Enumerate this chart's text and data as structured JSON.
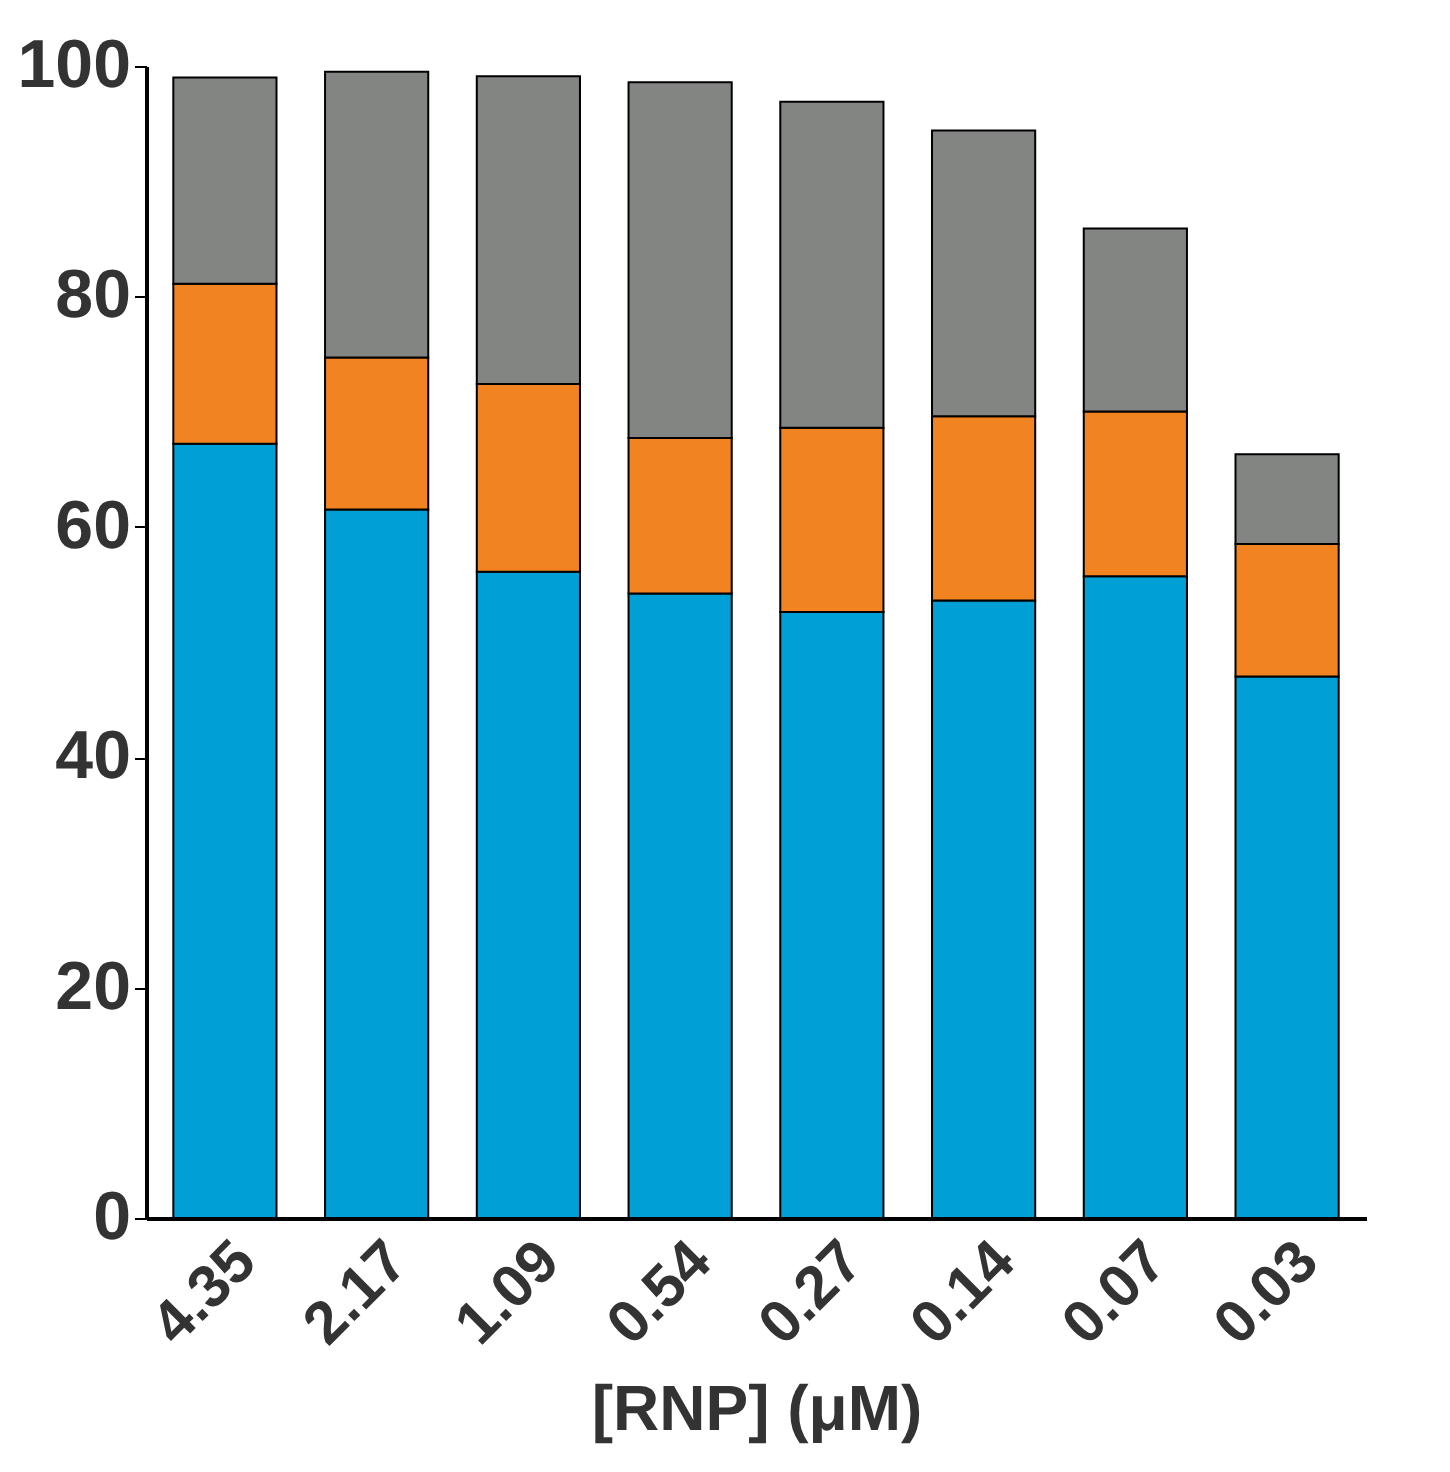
{
  "chart_data": {
    "type": "bar",
    "stacked": true,
    "xlabel": "[RNP] (μM)",
    "categories": [
      "4.35",
      "2.17",
      "1.09",
      "0.54",
      "0.27",
      "0.14",
      "0.07",
      "0.03"
    ],
    "series": [
      {
        "color": "#00a0d6",
        "values": [
          67.2,
          61.5,
          56.1,
          54.2,
          52.6,
          53.6,
          55.7,
          47.0
        ]
      },
      {
        "color": "#f28321",
        "values": [
          13.9,
          13.2,
          16.3,
          13.5,
          16.0,
          16.0,
          14.3,
          11.5
        ]
      },
      {
        "color": "#838583",
        "values": [
          17.9,
          24.8,
          26.7,
          30.9,
          28.3,
          24.8,
          15.9,
          7.8
        ]
      }
    ],
    "ylim": [
      0,
      100
    ],
    "yticks": [
      0,
      20,
      40,
      60,
      80,
      100
    ]
  }
}
